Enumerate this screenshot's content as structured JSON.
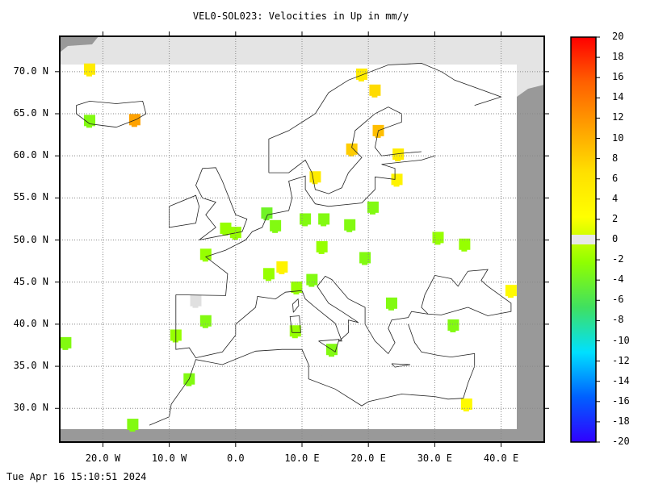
{
  "title": "VEL0-SOL023: Velocities in Up in mm/y",
  "footer": "Tue Apr 16 15:10:51 2024",
  "map": {
    "lon_range": [
      -26.5,
      46.5
    ],
    "lat_range": [
      26.0,
      74.2
    ],
    "lat_ticks": [
      {
        "value": 70,
        "label": "70.0 N"
      },
      {
        "value": 65,
        "label": "65.0 N"
      },
      {
        "value": 60,
        "label": "60.0 N"
      },
      {
        "value": 55,
        "label": "55.0 N"
      },
      {
        "value": 50,
        "label": "50.0 N"
      },
      {
        "value": 45,
        "label": "45.0 N"
      },
      {
        "value": 40,
        "label": "40.0 N"
      },
      {
        "value": 35,
        "label": "35.0 N"
      },
      {
        "value": 30,
        "label": "30.0 N"
      }
    ],
    "lon_ticks": [
      {
        "value": -20,
        "label": "20.0 W"
      },
      {
        "value": -10,
        "label": "10.0 W"
      },
      {
        "value": 0,
        "label": "0.0"
      },
      {
        "value": 10,
        "label": "10.0 E"
      },
      {
        "value": 20,
        "label": "20.0 E"
      },
      {
        "value": 30,
        "label": "30.0 E"
      },
      {
        "value": 40,
        "label": "40.0 E"
      }
    ],
    "grid": true
  },
  "colorbar": {
    "range": [
      -20,
      20
    ],
    "labels": [
      "20",
      "18",
      "16",
      "14",
      "12",
      "10",
      "8",
      "6",
      "4",
      "2",
      "0",
      "-2",
      "-4",
      "-6",
      "-8",
      "-10",
      "-12",
      "-14",
      "-16",
      "-18",
      "-20"
    ],
    "stops": [
      "#ff0000",
      "#ff6000",
      "#ffa000",
      "#ffe000",
      "#ffff00",
      "#90ff00",
      "#40e060",
      "#00e0ff",
      "#0060ff",
      "#3000ff"
    ]
  },
  "chart_data": {
    "type": "heatmap",
    "title": "VEL0-SOL023: Velocities in Up in mm/y",
    "xlabel": "",
    "ylabel": "",
    "units": "mm/y",
    "points": [
      {
        "lon": -22.0,
        "lat": 70.3,
        "value": 5
      },
      {
        "lon": -22.0,
        "lat": 64.2,
        "value": -3
      },
      {
        "lon": -15.2,
        "lat": 64.3,
        "value": 11
      },
      {
        "lon": -25.6,
        "lat": 37.8,
        "value": -3
      },
      {
        "lon": -9.0,
        "lat": 38.7,
        "value": -2
      },
      {
        "lon": -6.0,
        "lat": 42.8,
        "value": 0
      },
      {
        "lon": -4.5,
        "lat": 40.4,
        "value": -3
      },
      {
        "lon": -4.5,
        "lat": 48.3,
        "value": -2
      },
      {
        "lon": -7.0,
        "lat": 33.5,
        "value": -3
      },
      {
        "lon": -15.5,
        "lat": 28.1,
        "value": -3
      },
      {
        "lon": -1.5,
        "lat": 51.4,
        "value": -2
      },
      {
        "lon": 0.0,
        "lat": 50.9,
        "value": -2
      },
      {
        "lon": 4.7,
        "lat": 53.2,
        "value": -4
      },
      {
        "lon": 6.0,
        "lat": 51.7,
        "value": -3
      },
      {
        "lon": 5.0,
        "lat": 46.0,
        "value": -2
      },
      {
        "lon": 7.0,
        "lat": 46.8,
        "value": 4
      },
      {
        "lon": 10.5,
        "lat": 52.5,
        "value": -3
      },
      {
        "lon": 13.3,
        "lat": 52.5,
        "value": -3
      },
      {
        "lon": 17.2,
        "lat": 51.8,
        "value": -3
      },
      {
        "lon": 20.7,
        "lat": 53.9,
        "value": -3
      },
      {
        "lon": 13.0,
        "lat": 49.2,
        "value": -2
      },
      {
        "lon": 19.5,
        "lat": 47.9,
        "value": -3
      },
      {
        "lon": 11.5,
        "lat": 45.3,
        "value": -3
      },
      {
        "lon": 9.2,
        "lat": 44.4,
        "value": -2
      },
      {
        "lon": 9.0,
        "lat": 39.2,
        "value": -2
      },
      {
        "lon": 14.5,
        "lat": 37.0,
        "value": -3
      },
      {
        "lon": 23.5,
        "lat": 42.5,
        "value": -3
      },
      {
        "lon": 32.8,
        "lat": 39.9,
        "value": -3
      },
      {
        "lon": 30.5,
        "lat": 50.3,
        "value": -2
      },
      {
        "lon": 34.5,
        "lat": 49.5,
        "value": -2
      },
      {
        "lon": 41.5,
        "lat": 44.0,
        "value": 3
      },
      {
        "lon": 34.8,
        "lat": 30.5,
        "value": 3
      },
      {
        "lon": 12.0,
        "lat": 57.5,
        "value": 5
      },
      {
        "lon": 24.3,
        "lat": 57.2,
        "value": 4
      },
      {
        "lon": 17.5,
        "lat": 60.8,
        "value": 8
      },
      {
        "lon": 24.5,
        "lat": 60.2,
        "value": 5
      },
      {
        "lon": 21.5,
        "lat": 63.0,
        "value": 9
      },
      {
        "lon": 21.0,
        "lat": 67.8,
        "value": 7
      },
      {
        "lon": 19.0,
        "lat": 69.7,
        "value": 5
      }
    ]
  }
}
